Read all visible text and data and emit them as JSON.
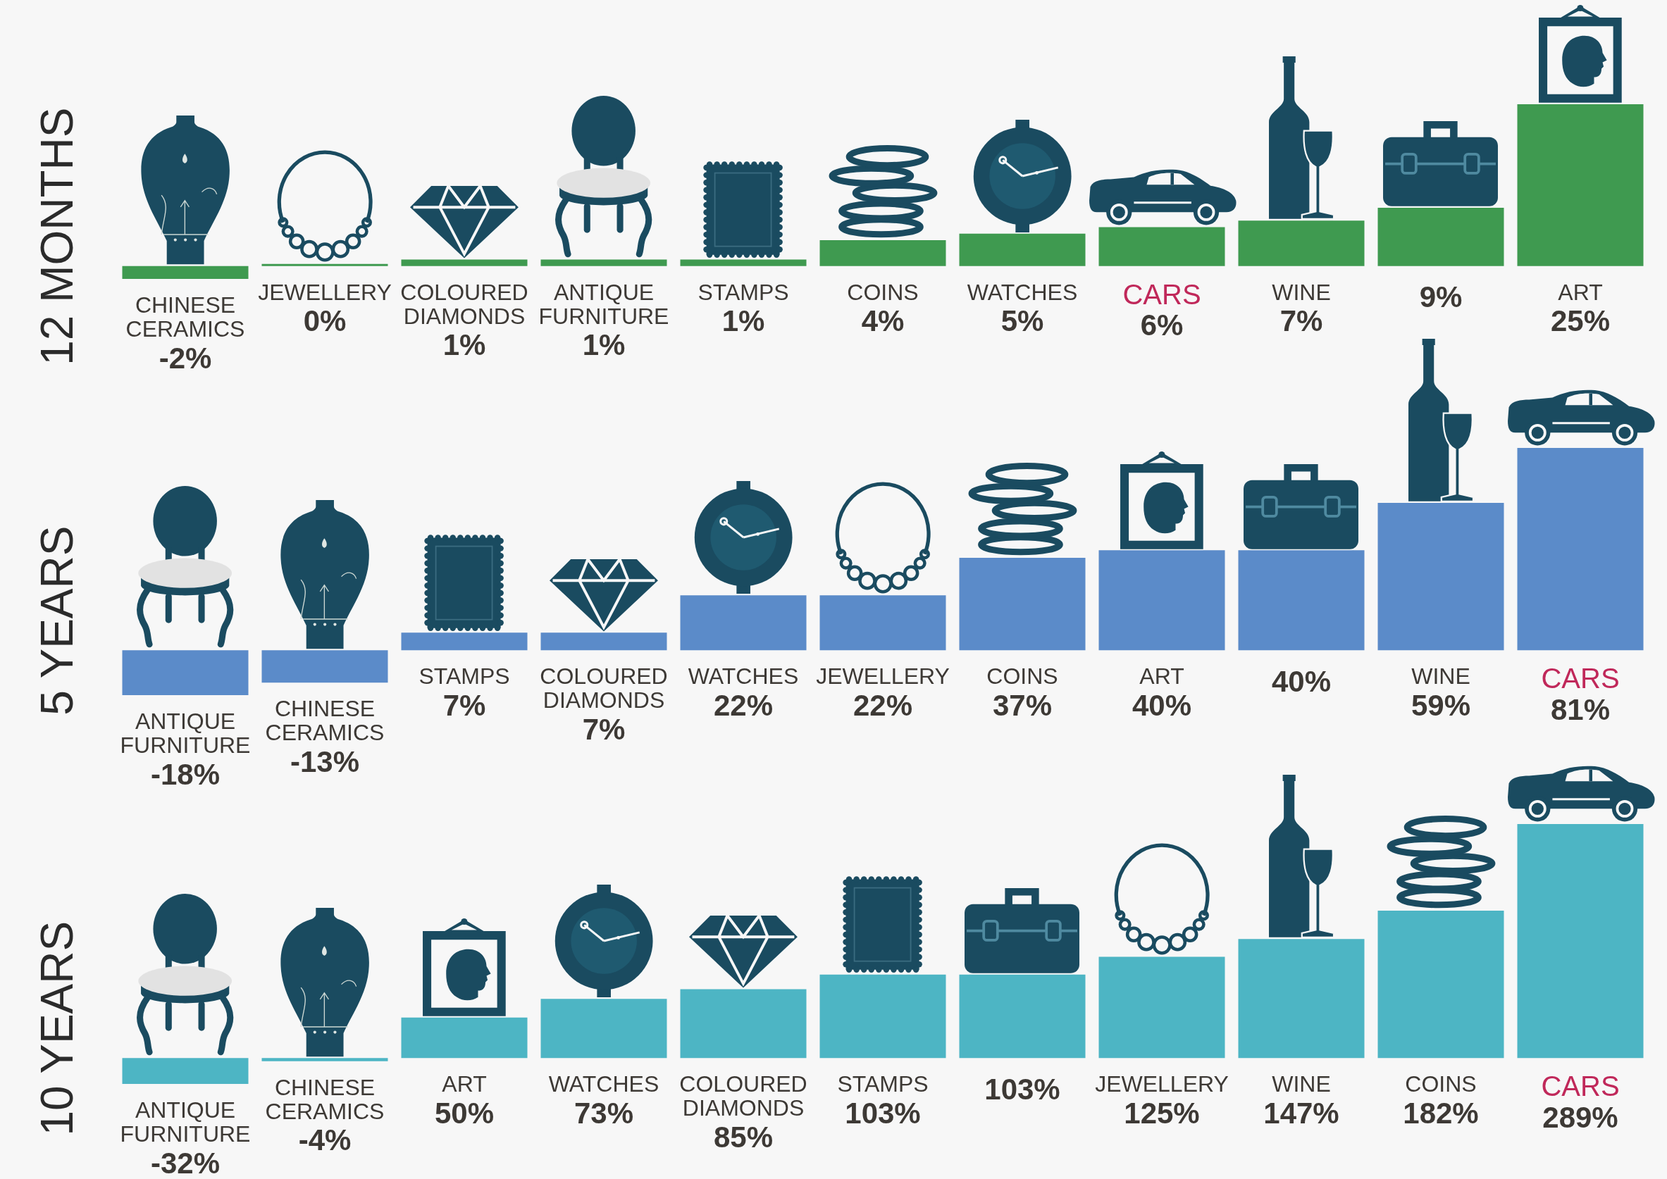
{
  "chart_data": [
    {
      "type": "bar",
      "title": "12 MONTHS",
      "categories": [
        "CHINESE CERAMICS",
        "JEWELLERY",
        "COLOURED DIAMONDS",
        "ANTIQUE FURNITURE",
        "STAMPS",
        "COINS",
        "WATCHES",
        "CARS",
        "WINE",
        null,
        "ART"
      ],
      "values": [
        -2,
        0,
        1,
        1,
        1,
        4,
        5,
        6,
        7,
        9,
        25
      ],
      "value_labels": [
        "-2%",
        "0%",
        "1%",
        "1%",
        "1%",
        "4%",
        "5%",
        "6%",
        "7%",
        "9%",
        "25%"
      ],
      "color": "#3f9a50",
      "tick_labels": "x"
    },
    {
      "type": "bar",
      "title": "5 YEARS",
      "categories": [
        "ANTIQUE FURNITURE",
        "CHINESE CERAMICS",
        "STAMPS",
        "COLOURED DIAMONDS",
        "WATCHES",
        "JEWELLERY",
        "COINS",
        "ART",
        null,
        "WINE",
        "CARS"
      ],
      "values": [
        -18,
        -13,
        7,
        7,
        22,
        22,
        37,
        40,
        40,
        59,
        81
      ],
      "value_labels": [
        "-18%",
        "-13%",
        "7%",
        "7%",
        "22%",
        "22%",
        "37%",
        "40%",
        "40%",
        "59%",
        "81%"
      ],
      "color": "#5b8bc9",
      "tick_labels": "x"
    },
    {
      "type": "bar",
      "title": "10 YEARS",
      "categories": [
        "ANTIQUE FURNITURE",
        "CHINESE CERAMICS",
        "ART",
        "WATCHES",
        "COLOURED DIAMONDS",
        "STAMPS",
        null,
        "JEWELLERY",
        "WINE",
        "COINS",
        "CARS"
      ],
      "values": [
        -32,
        -4,
        50,
        73,
        85,
        103,
        103,
        125,
        147,
        182,
        289
      ],
      "value_labels": [
        "-32%",
        "-4%",
        "50%",
        "73%",
        "85%",
        "103%",
        "103%",
        "125%",
        "147%",
        "182%",
        "289%"
      ],
      "color": "#4db5c4",
      "tick_labels": "x"
    }
  ]
}
